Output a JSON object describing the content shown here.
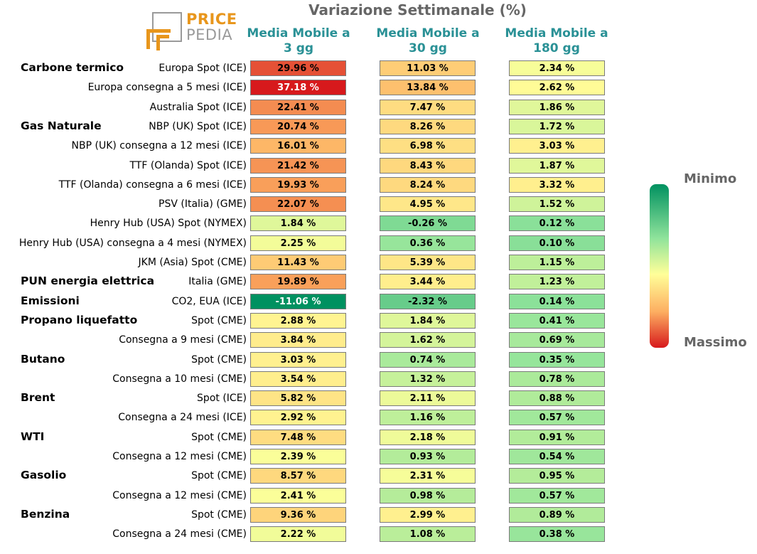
{
  "title": "Variazione Settimanale (%)",
  "logo": {
    "word1": "PRICE",
    "word2": "PEDIA",
    "color_brand": "#e8961c",
    "color_grey": "#9a9a9a"
  },
  "columns": [
    {
      "line1": "Media Mobile a",
      "line2": "3 gg"
    },
    {
      "line1": "Media Mobile a",
      "line2": "30 gg"
    },
    {
      "line1": "Media Mobile a",
      "line2": "180 gg"
    }
  ],
  "legend": {
    "min_label": "Minimo",
    "max_label": "Massimo",
    "min_color": "#009160",
    "max_color": "#d7191c"
  },
  "chart_data": {
    "type": "table",
    "value_suffix": " %",
    "groups": [
      {
        "name": "Carbone termico",
        "row": 0
      },
      {
        "name": "Gas Naturale",
        "row": 3
      },
      {
        "name": "PUN energia elettrica",
        "row": 11
      },
      {
        "name": "Emissioni",
        "row": 12
      },
      {
        "name": "Propano liquefatto",
        "row": 13
      },
      {
        "name": "Butano",
        "row": 15
      },
      {
        "name": "Brent",
        "row": 17
      },
      {
        "name": "WTI",
        "row": 19
      },
      {
        "name": "Gasolio",
        "row": 21
      },
      {
        "name": "Benzina",
        "row": 23
      }
    ],
    "rows": [
      {
        "label": "Europa Spot (ICE)",
        "values": [
          29.96,
          11.03,
          2.34
        ]
      },
      {
        "label": "Europa consegna a 5 mesi (ICE)",
        "values": [
          37.18,
          13.84,
          2.62
        ]
      },
      {
        "label": "Australia Spot (ICE)",
        "values": [
          22.41,
          7.47,
          1.86
        ]
      },
      {
        "label": "NBP (UK) Spot (ICE)",
        "values": [
          20.74,
          8.26,
          1.72
        ]
      },
      {
        "label": "NBP (UK) consegna a 12 mesi (ICE)",
        "values": [
          16.01,
          6.98,
          3.03
        ]
      },
      {
        "label": "TTF (Olanda) Spot (ICE)",
        "values": [
          21.42,
          8.43,
          1.87
        ]
      },
      {
        "label": "TTF (Olanda) consegna a 6 mesi (ICE)",
        "values": [
          19.93,
          8.24,
          3.32
        ]
      },
      {
        "label": "PSV (Italia) (GME)",
        "values": [
          22.07,
          4.95,
          1.52
        ]
      },
      {
        "label": "Henry Hub (USA) Spot (NYMEX)",
        "values": [
          1.84,
          -0.26,
          0.12
        ]
      },
      {
        "label": "Henry Hub (USA) consegna a 4 mesi (NYMEX)",
        "values": [
          2.25,
          0.36,
          0.1
        ]
      },
      {
        "label": "JKM (Asia) Spot (CME)",
        "values": [
          11.43,
          5.39,
          1.15
        ]
      },
      {
        "label": "Italia (GME)",
        "values": [
          19.89,
          3.44,
          1.23
        ]
      },
      {
        "label": "CO2, EUA (ICE)",
        "values": [
          -11.06,
          -2.32,
          0.14
        ]
      },
      {
        "label": "Spot (CME)",
        "values": [
          2.88,
          1.84,
          0.41
        ]
      },
      {
        "label": "Consegna a 9 mesi (CME)",
        "values": [
          3.84,
          1.62,
          0.69
        ]
      },
      {
        "label": "Spot (CME)",
        "values": [
          3.03,
          0.74,
          0.35
        ]
      },
      {
        "label": "Consegna a 10 mesi (CME)",
        "values": [
          3.54,
          1.32,
          0.78
        ]
      },
      {
        "label": "Spot (ICE)",
        "values": [
          5.82,
          2.11,
          0.88
        ]
      },
      {
        "label": "Consegna a 24 mesi (ICE)",
        "values": [
          2.92,
          1.16,
          0.57
        ]
      },
      {
        "label": "Spot (CME)",
        "values": [
          7.48,
          2.18,
          0.91
        ]
      },
      {
        "label": "Consegna a 12 mesi (CME)",
        "values": [
          2.39,
          0.93,
          0.54
        ]
      },
      {
        "label": "Spot (CME)",
        "values": [
          8.57,
          2.31,
          0.95
        ]
      },
      {
        "label": "Consegna a 12 mesi (CME)",
        "values": [
          2.41,
          0.98,
          0.57
        ]
      },
      {
        "label": "Spot (CME)",
        "values": [
          9.36,
          2.99,
          0.89
        ]
      },
      {
        "label": "Consegna a 24 mesi (CME)",
        "values": [
          2.22,
          1.08,
          0.38
        ]
      }
    ]
  }
}
